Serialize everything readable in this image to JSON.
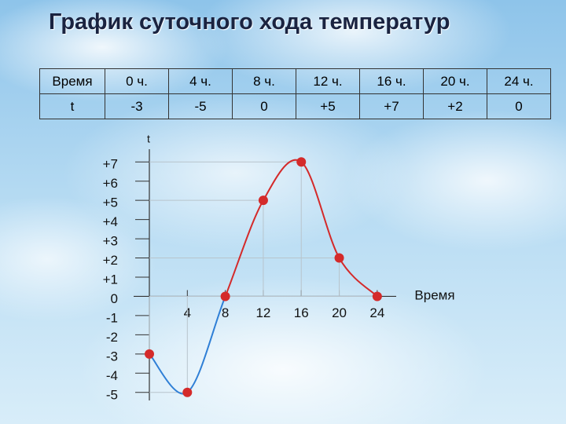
{
  "header": {
    "title": "График суточного хода температур"
  },
  "table": {
    "rows": [
      [
        "Время",
        "0 ч.",
        "4 ч.",
        "8 ч.",
        "12 ч.",
        "16 ч.",
        "20 ч.",
        "24 ч."
      ],
      [
        "t",
        "-3",
        "-5",
        "0",
        "+5",
        "+7",
        "+2",
        "0"
      ]
    ]
  },
  "chart_data": {
    "type": "line",
    "x_label": "Время",
    "y_label": "t",
    "x": [
      0,
      4,
      8,
      12,
      16,
      20,
      24
    ],
    "series": [
      {
        "color": "#d42a2a",
        "negative_color": "#2f7fd6",
        "values": [
          -3,
          -5,
          0,
          5,
          7,
          2,
          0
        ]
      }
    ],
    "xlim": [
      0,
      26
    ],
    "ylim": [
      -5.5,
      7.5
    ],
    "xticks": [
      4,
      8,
      12,
      16,
      20,
      24
    ],
    "yticks": [
      {
        "value": 7,
        "label": "+7"
      },
      {
        "value": 6,
        "label": "+6"
      },
      {
        "value": 5,
        "label": "+5"
      },
      {
        "value": 4,
        "label": "+4"
      },
      {
        "value": 3,
        "label": "+3"
      },
      {
        "value": 2,
        "label": "+2"
      },
      {
        "value": 1,
        "label": "+1"
      },
      0,
      -1,
      -2,
      -3,
      -4,
      -5
    ]
  }
}
